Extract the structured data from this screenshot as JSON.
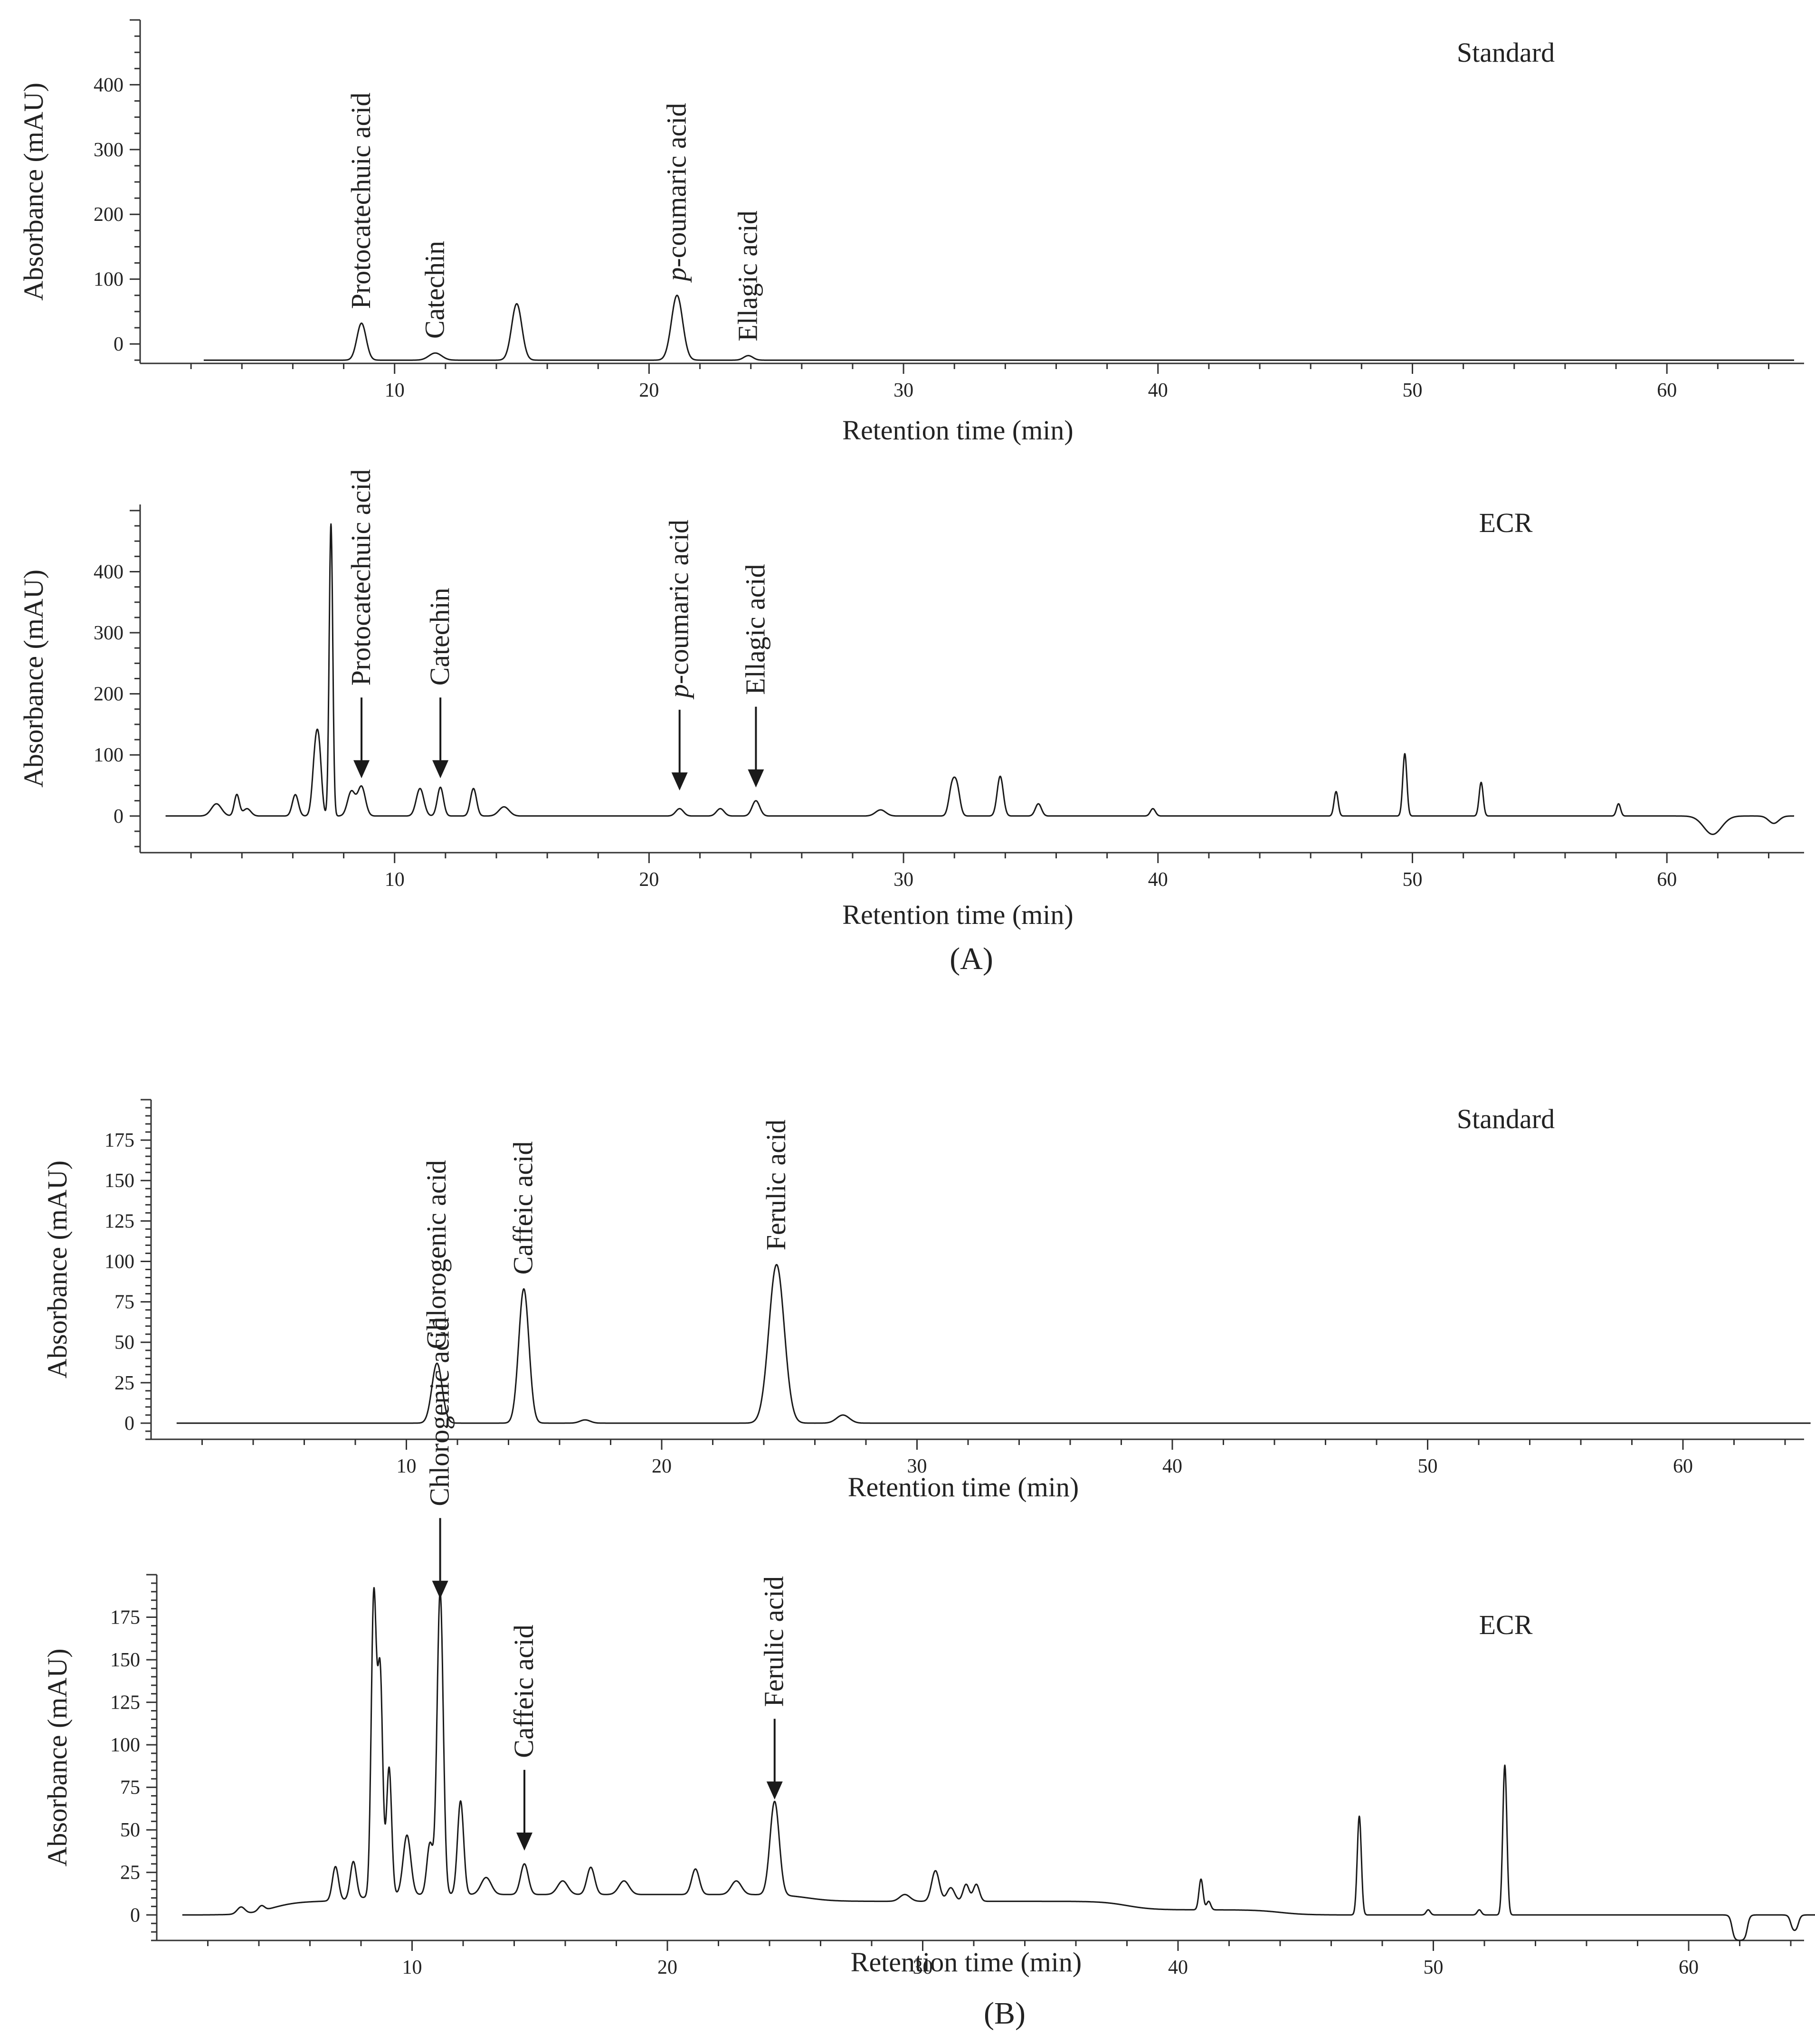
{
  "colors": {
    "trace": "#1a1a1a",
    "axis": "#333333",
    "text": "#222222",
    "trace_end": "#3355cc"
  },
  "panels": [
    {
      "caption": "(A)"
    },
    {
      "caption": "(B)"
    }
  ],
  "chart_data": [
    {
      "type": "line",
      "sample": "Standard",
      "xlabel": "Retention time (min)",
      "ylabel": "Absorbance (mAU)",
      "xlim": [
        0,
        65
      ],
      "ylim": [
        -30,
        500
      ],
      "x_ticks": [
        10,
        20,
        30,
        40,
        50,
        60
      ],
      "y_ticks": [
        0,
        100,
        200,
        300,
        400
      ],
      "grid": false,
      "baseline": -25,
      "peaks": [
        {
          "x": 8.7,
          "y": 32,
          "w": 0.18
        },
        {
          "x": 11.6,
          "y": -14,
          "w": 0.25
        },
        {
          "x": 14.8,
          "y": 62,
          "w": 0.2
        },
        {
          "x": 21.1,
          "y": 75,
          "w": 0.22
        },
        {
          "x": 23.9,
          "y": -18,
          "w": 0.18
        }
      ],
      "annotations": [
        {
          "text": "Protocatechuic acid",
          "x": 8.7,
          "y": 32
        },
        {
          "text": "Catechin",
          "x": 11.6,
          "y": -14
        },
        {
          "text": "p-coumaric acid",
          "x": 21.1,
          "y": 75,
          "italic_prefix": "p"
        },
        {
          "text": "Ellagic acid",
          "x": 23.9,
          "y": -18
        }
      ]
    },
    {
      "type": "line",
      "sample": "ECR",
      "xlabel": "Retention time (min)",
      "ylabel": "Absorbance (mAU)",
      "xlim": [
        0,
        65
      ],
      "ylim": [
        -60,
        510
      ],
      "x_ticks": [
        10,
        20,
        30,
        40,
        50,
        60
      ],
      "y_ticks": [
        0,
        100,
        200,
        300,
        400
      ],
      "grid": false,
      "baseline": 0,
      "peaks": [
        {
          "x": 3.0,
          "y": 20,
          "w": 0.2
        },
        {
          "x": 3.8,
          "y": 35,
          "w": 0.1
        },
        {
          "x": 4.2,
          "y": 12,
          "w": 0.15
        },
        {
          "x": 6.1,
          "y": 35,
          "w": 0.12
        },
        {
          "x": 6.9,
          "y": 108,
          "w": 0.12
        },
        {
          "x": 7.05,
          "y": 70,
          "w": 0.1
        },
        {
          "x": 7.5,
          "y": 478,
          "w": 0.07
        },
        {
          "x": 8.3,
          "y": 40,
          "w": 0.15
        },
        {
          "x": 8.7,
          "y": 48,
          "w": 0.15
        },
        {
          "x": 11.0,
          "y": 45,
          "w": 0.15
        },
        {
          "x": 11.8,
          "y": 47,
          "w": 0.12
        },
        {
          "x": 13.1,
          "y": 45,
          "w": 0.12
        },
        {
          "x": 14.3,
          "y": 15,
          "w": 0.2
        },
        {
          "x": 21.2,
          "y": 12,
          "w": 0.15
        },
        {
          "x": 22.8,
          "y": 12,
          "w": 0.15
        },
        {
          "x": 24.2,
          "y": 25,
          "w": 0.15
        },
        {
          "x": 29.1,
          "y": 10,
          "w": 0.2
        },
        {
          "x": 31.9,
          "y": 45,
          "w": 0.12
        },
        {
          "x": 32.1,
          "y": 45,
          "w": 0.12
        },
        {
          "x": 33.8,
          "y": 65,
          "w": 0.12
        },
        {
          "x": 35.3,
          "y": 20,
          "w": 0.12
        },
        {
          "x": 39.8,
          "y": 12,
          "w": 0.1
        },
        {
          "x": 47.0,
          "y": 40,
          "w": 0.08
        },
        {
          "x": 49.7,
          "y": 102,
          "w": 0.08
        },
        {
          "x": 52.7,
          "y": 55,
          "w": 0.08
        },
        {
          "x": 58.1,
          "y": 20,
          "w": 0.08
        },
        {
          "x": 61.8,
          "y": -30,
          "w": 0.35
        },
        {
          "x": 64.2,
          "y": -12,
          "w": 0.2
        }
      ],
      "annotations": [
        {
          "text": "Protocatechuic acid",
          "x": 8.7,
          "y": 40,
          "arrow": true
        },
        {
          "text": "Catechin",
          "x": 11.8,
          "y": 40,
          "arrow": true
        },
        {
          "text": "p-coumaric acid",
          "x": 21.2,
          "y": 20,
          "arrow": true,
          "italic_prefix": "p"
        },
        {
          "text": "Ellagic acid",
          "x": 24.2,
          "y": 25,
          "arrow": true
        }
      ]
    },
    {
      "type": "line",
      "sample": "Standard",
      "xlabel": "Retention time (min)",
      "ylabel": "Absorbance (mAU)",
      "xlim": [
        0,
        65
      ],
      "ylim": [
        -10,
        200
      ],
      "x_ticks": [
        10,
        20,
        30,
        40,
        50,
        60
      ],
      "y_ticks": [
        0,
        25,
        50,
        75,
        100,
        125,
        150,
        175
      ],
      "grid": false,
      "baseline": 0,
      "peaks": [
        {
          "x": 11.2,
          "y": 37,
          "w": 0.2
        },
        {
          "x": 14.6,
          "y": 83,
          "w": 0.2
        },
        {
          "x": 17.0,
          "y": 2,
          "w": 0.2
        },
        {
          "x": 24.5,
          "y": 98,
          "w": 0.3
        },
        {
          "x": 27.1,
          "y": 5,
          "w": 0.25
        }
      ],
      "annotations": [
        {
          "text": "Chlorogenic acid",
          "x": 11.2,
          "y": 37
        },
        {
          "text": "Caffeic acid",
          "x": 14.6,
          "y": 83
        },
        {
          "text": "Ferulic acid",
          "x": 24.5,
          "y": 98
        }
      ]
    },
    {
      "type": "line",
      "sample": "ECR",
      "xlabel": "Retention time (min)",
      "ylabel": "Absorbance (mAU)",
      "xlim": [
        0,
        65
      ],
      "ylim": [
        -15,
        200
      ],
      "x_ticks": [
        10,
        20,
        30,
        40,
        50,
        60
      ],
      "y_ticks": [
        0,
        25,
        50,
        75,
        100,
        125,
        150,
        175
      ],
      "grid": false,
      "baseline": 0,
      "peaks": [
        {
          "x": 3.3,
          "y": 4,
          "w": 0.15
        },
        {
          "x": 4.1,
          "y": 3,
          "w": 0.12
        },
        {
          "x": 7.0,
          "y": 20,
          "w": 0.12
        },
        {
          "x": 7.7,
          "y": 22,
          "w": 0.12
        },
        {
          "x": 8.5,
          "y": 175,
          "w": 0.1
        },
        {
          "x": 8.75,
          "y": 130,
          "w": 0.1
        },
        {
          "x": 9.1,
          "y": 75,
          "w": 0.1
        },
        {
          "x": 9.8,
          "y": 35,
          "w": 0.15
        },
        {
          "x": 10.7,
          "y": 30,
          "w": 0.12
        },
        {
          "x": 11.1,
          "y": 178,
          "w": 0.12
        },
        {
          "x": 11.9,
          "y": 55,
          "w": 0.12
        },
        {
          "x": 12.9,
          "y": 10,
          "w": 0.2
        },
        {
          "x": 14.4,
          "y": 18,
          "w": 0.15
        },
        {
          "x": 15.9,
          "y": 8,
          "w": 0.2
        },
        {
          "x": 17.0,
          "y": 16,
          "w": 0.15
        },
        {
          "x": 18.3,
          "y": 8,
          "w": 0.2
        },
        {
          "x": 21.1,
          "y": 15,
          "w": 0.15
        },
        {
          "x": 22.7,
          "y": 8,
          "w": 0.2
        },
        {
          "x": 24.2,
          "y": 55,
          "w": 0.18
        },
        {
          "x": 29.3,
          "y": 4,
          "w": 0.2
        },
        {
          "x": 30.5,
          "y": 18,
          "w": 0.15
        },
        {
          "x": 31.1,
          "y": 8,
          "w": 0.15
        },
        {
          "x": 31.7,
          "y": 10,
          "w": 0.12
        },
        {
          "x": 32.1,
          "y": 10,
          "w": 0.12
        },
        {
          "x": 40.9,
          "y": 18,
          "w": 0.08
        },
        {
          "x": 41.2,
          "y": 5,
          "w": 0.08
        },
        {
          "x": 47.1,
          "y": 58,
          "w": 0.08
        },
        {
          "x": 49.8,
          "y": 3,
          "w": 0.08
        },
        {
          "x": 51.8,
          "y": 3,
          "w": 0.08
        },
        {
          "x": 52.8,
          "y": 88,
          "w": 0.08
        }
      ],
      "humps": [
        {
          "x1": 4.5,
          "x2": 8.0,
          "y": 8
        },
        {
          "x1": 8.0,
          "x2": 25.5,
          "y": 12
        },
        {
          "x1": 25.5,
          "x2": 32.5,
          "y": 8
        },
        {
          "x1": 32.5,
          "x2": 38.0,
          "y": 8
        },
        {
          "x1": 38.0,
          "x2": 44.0,
          "y": 3
        }
      ],
      "dips": [
        {
          "x1": 61.7,
          "x2": 62.3,
          "y": -15
        },
        {
          "x1": 64.0,
          "x2": 64.3,
          "y": -10
        }
      ],
      "annotations": [
        {
          "text": "Chlorogenic acid",
          "x": 11.1,
          "y": 178,
          "arrow": true
        },
        {
          "text": "Caffeic acid",
          "x": 14.4,
          "y": 30,
          "arrow": true
        },
        {
          "text": "Ferulic acid",
          "x": 24.2,
          "y": 60,
          "arrow": true
        }
      ]
    }
  ]
}
